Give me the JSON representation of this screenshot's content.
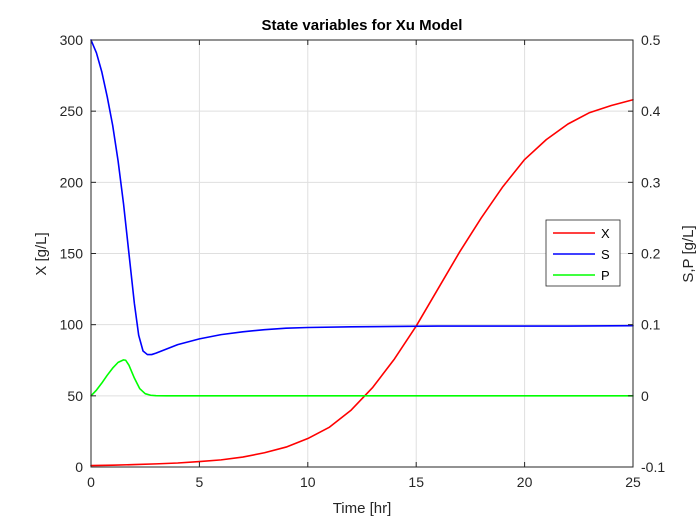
{
  "chart_data": {
    "type": "line",
    "title": "State variables for Xu Model",
    "xlabel": "Time [hr]",
    "ylabel_left": "X [g/L]",
    "ylabel_right": "S,P [g/L]",
    "xlim": [
      0,
      25
    ],
    "ylim_left": [
      0,
      300
    ],
    "ylim_right": [
      -0.1,
      0.5
    ],
    "x_ticks": [
      0,
      5,
      10,
      15,
      20,
      25
    ],
    "y_left_ticks": [
      0,
      50,
      100,
      150,
      200,
      250,
      300
    ],
    "y_right_ticks": [
      "-0.1",
      "0",
      "0.1",
      "0.2",
      "0.3",
      "0.4",
      "0.5"
    ],
    "grid": true,
    "legend_position": "right",
    "series": [
      {
        "name": "X",
        "axis": "left",
        "color": "#ff0000",
        "x": [
          0,
          1,
          2,
          3,
          4,
          5,
          6,
          7,
          8,
          9,
          10,
          11,
          12,
          13,
          14,
          15,
          16,
          17,
          18,
          19,
          20,
          21,
          22,
          23,
          24,
          25
        ],
        "y": [
          1,
          1.3,
          1.7,
          2.2,
          2.8,
          3.8,
          5,
          7,
          10,
          14,
          20,
          28,
          40,
          56,
          76,
          99,
          125,
          151,
          175,
          197,
          216,
          230,
          241,
          249,
          254,
          258
        ]
      },
      {
        "name": "S",
        "axis": "right",
        "color": "#0000ff",
        "x": [
          0,
          0.25,
          0.5,
          0.75,
          1,
          1.25,
          1.5,
          1.75,
          2,
          2.2,
          2.4,
          2.6,
          2.8,
          3,
          3.5,
          4,
          5,
          6,
          7,
          8,
          9,
          10,
          12,
          14,
          16,
          18,
          20,
          22,
          25
        ],
        "y": [
          0.5,
          0.482,
          0.455,
          0.42,
          0.38,
          0.33,
          0.27,
          0.2,
          0.13,
          0.085,
          0.063,
          0.058,
          0.058,
          0.06,
          0.066,
          0.072,
          0.08,
          0.086,
          0.09,
          0.093,
          0.095,
          0.096,
          0.097,
          0.0975,
          0.098,
          0.098,
          0.098,
          0.098,
          0.0985
        ]
      },
      {
        "name": "P",
        "axis": "right",
        "color": "#00ff00",
        "x": [
          0,
          0.25,
          0.5,
          0.75,
          1,
          1.25,
          1.5,
          1.6,
          1.75,
          2,
          2.25,
          2.5,
          2.75,
          3,
          3.5,
          4,
          5,
          10,
          15,
          20,
          25
        ],
        "y": [
          0,
          0.008,
          0.018,
          0.029,
          0.039,
          0.047,
          0.0505,
          0.05,
          0.043,
          0.025,
          0.01,
          0.003,
          0.0008,
          0.0002,
          0,
          0,
          0,
          0,
          0,
          0,
          0
        ]
      }
    ]
  }
}
